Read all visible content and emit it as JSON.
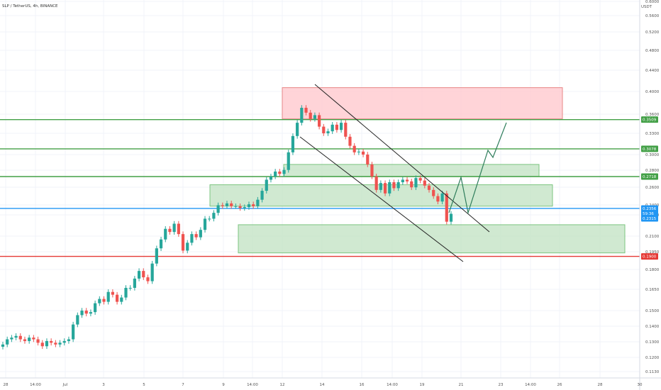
{
  "title": "SLP / TetherUS, 4h, BINANCE",
  "currency": "USDT",
  "colors": {
    "up": "#26a69a",
    "down": "#ef5350",
    "zone_green_fill": "#c8e6c9",
    "zone_green_stroke": "#66bb6a",
    "zone_red_fill": "#ffcdd2",
    "zone_red_stroke": "#e57373",
    "level_green": "#43a047",
    "level_red": "#e53935",
    "level_blue": "#2196f3",
    "projection": "#2e7d5b",
    "channel": "#222222"
  },
  "y_tick_labels": [
    "0.6000",
    "0.5600",
    "0.5200",
    "0.4800",
    "0.4400",
    "0.4000",
    "0.3600",
    "0.3300",
    "0.3000",
    "0.2800",
    "0.2600",
    "0.2400",
    "0.2300",
    "0.2100",
    "0.1950",
    "0.1800",
    "0.1650",
    "0.1500",
    "0.1400",
    "0.1300",
    "0.1200",
    "0.1130"
  ],
  "x_tick_labels": [
    "28",
    "14:00",
    "Jul",
    "3",
    "5",
    "7",
    "9",
    "14:00",
    "12",
    "14",
    "16",
    "14:00",
    "19",
    "21",
    "23",
    "14:00",
    "26",
    "28",
    "30"
  ],
  "badges": [
    {
      "text": "0.3509",
      "color": "#43a047"
    },
    {
      "text": "0.3078",
      "color": "#43a047"
    },
    {
      "text": "0.2718",
      "color": "#43a047"
    },
    {
      "text": "0.2356",
      "color": "#2196f3"
    },
    {
      "text": "59:36",
      "color": "#2196f3"
    },
    {
      "text": "0.2315",
      "color": "#2196f3"
    },
    {
      "text": "0.1900",
      "color": "#e53935"
    }
  ],
  "chart_data": {
    "type": "candlestick",
    "title": "SLP / TetherUS, 4h, BINANCE",
    "x_axis": [
      "28",
      "14:00",
      "Jul",
      "3",
      "5",
      "7",
      "9",
      "14:00",
      "12",
      "14",
      "16",
      "14:00",
      "19",
      "21",
      "23",
      "14:00",
      "26",
      "28",
      "30"
    ],
    "y_axis_scale": "log",
    "ylim": [
      0.113,
      0.6
    ],
    "close_approx": [
      0.128,
      0.131,
      0.132,
      0.133,
      0.131,
      0.13,
      0.132,
      0.131,
      0.129,
      0.127,
      0.13,
      0.129,
      0.128,
      0.129,
      0.13,
      0.131,
      0.14,
      0.146,
      0.149,
      0.147,
      0.148,
      0.154,
      0.157,
      0.155,
      0.162,
      0.16,
      0.155,
      0.158,
      0.165,
      0.165,
      0.172,
      0.178,
      0.173,
      0.17,
      0.184,
      0.197,
      0.205,
      0.215,
      0.212,
      0.22,
      0.21,
      0.195,
      0.202,
      0.21,
      0.207,
      0.214,
      0.225,
      0.225,
      0.231,
      0.239,
      0.238,
      0.241,
      0.238,
      0.238,
      0.236,
      0.237,
      0.24,
      0.238,
      0.245,
      0.255,
      0.268,
      0.272,
      0.278,
      0.275,
      0.28,
      0.303,
      0.326,
      0.346,
      0.37,
      0.362,
      0.352,
      0.358,
      0.34,
      0.33,
      0.333,
      0.343,
      0.335,
      0.346,
      0.325,
      0.312,
      0.303,
      0.304,
      0.3,
      0.287,
      0.272,
      0.256,
      0.264,
      0.252,
      0.265,
      0.258,
      0.265,
      0.268,
      0.266,
      0.259,
      0.27,
      0.267,
      0.261,
      0.256,
      0.249,
      0.243,
      0.252,
      0.222,
      0.23
    ],
    "horizontal_levels": [
      {
        "value": 0.3509,
        "label": "0.3509",
        "color": "#43a047"
      },
      {
        "value": 0.3078,
        "label": "0.3078",
        "color": "#43a047"
      },
      {
        "value": 0.2718,
        "label": "0.2718",
        "color": "#43a047"
      },
      {
        "value": 0.2356,
        "label": "0.2356",
        "color": "#2196f3"
      },
      {
        "value": 0.19,
        "label": "0.1900",
        "color": "#e53935"
      }
    ],
    "zones": [
      {
        "type": "supply",
        "color": "red",
        "top": 0.405,
        "bottom": 0.352
      },
      {
        "type": "demand",
        "color": "green",
        "top": 0.287,
        "bottom": 0.272
      },
      {
        "type": "demand",
        "color": "green",
        "top": 0.262,
        "bottom": 0.238
      },
      {
        "type": "demand",
        "color": "green",
        "top": 0.219,
        "bottom": 0.193
      }
    ]
  }
}
